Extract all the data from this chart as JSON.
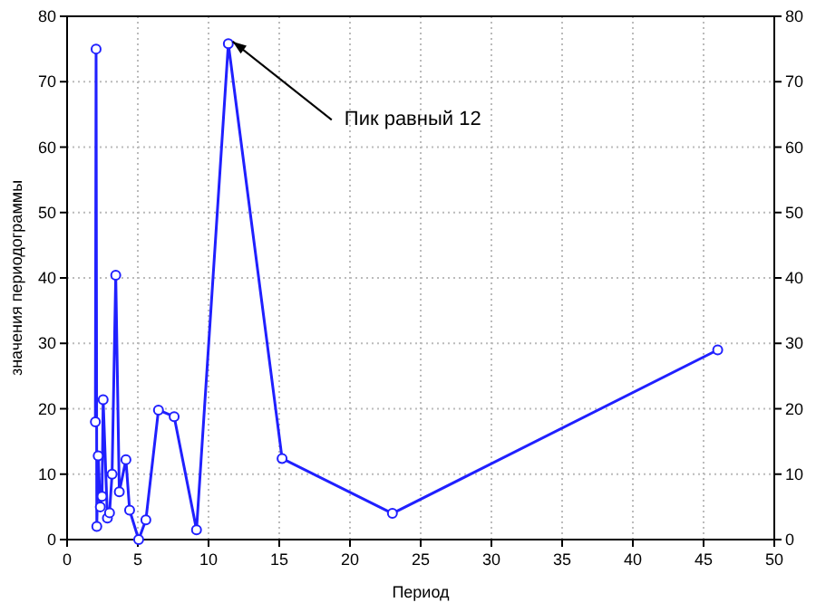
{
  "chart_data": {
    "type": "line",
    "xlabel": "Период",
    "ylabel": "значения периодограммы",
    "xlim": [
      0,
      50
    ],
    "xticks": [
      0,
      5,
      10,
      15,
      20,
      25,
      30,
      35,
      40,
      45,
      50
    ],
    "ylim": [
      0,
      80
    ],
    "yticks": [
      0,
      10,
      20,
      30,
      40,
      50,
      60,
      70,
      80
    ],
    "y2lim": [
      0,
      80
    ],
    "y2ticks": [
      0,
      10,
      20,
      30,
      40,
      50,
      60,
      70,
      80
    ],
    "grid": true,
    "marker": "circle",
    "line_style": "solid",
    "annotations": [
      {
        "text": "Пик равный 12",
        "x": 11.4,
        "y": 75.8
      }
    ],
    "series": [
      {
        "color": "#2020ff",
        "x": [
          2.0,
          2.05,
          2.1,
          2.2,
          2.35,
          2.47,
          2.55,
          2.85,
          3.0,
          3.18,
          3.44,
          3.69,
          4.16,
          4.42,
          5.06,
          5.57,
          6.46,
          7.57,
          9.15,
          11.4,
          15.2,
          23,
          46
        ],
        "values": [
          18,
          75,
          2,
          12.8,
          5,
          6.6,
          21.4,
          3.3,
          4.1,
          10,
          40.4,
          7.3,
          12.2,
          4.5,
          0,
          3,
          19.8,
          18.8,
          1.5,
          75.8,
          12.4,
          4,
          29
        ]
      }
    ]
  }
}
